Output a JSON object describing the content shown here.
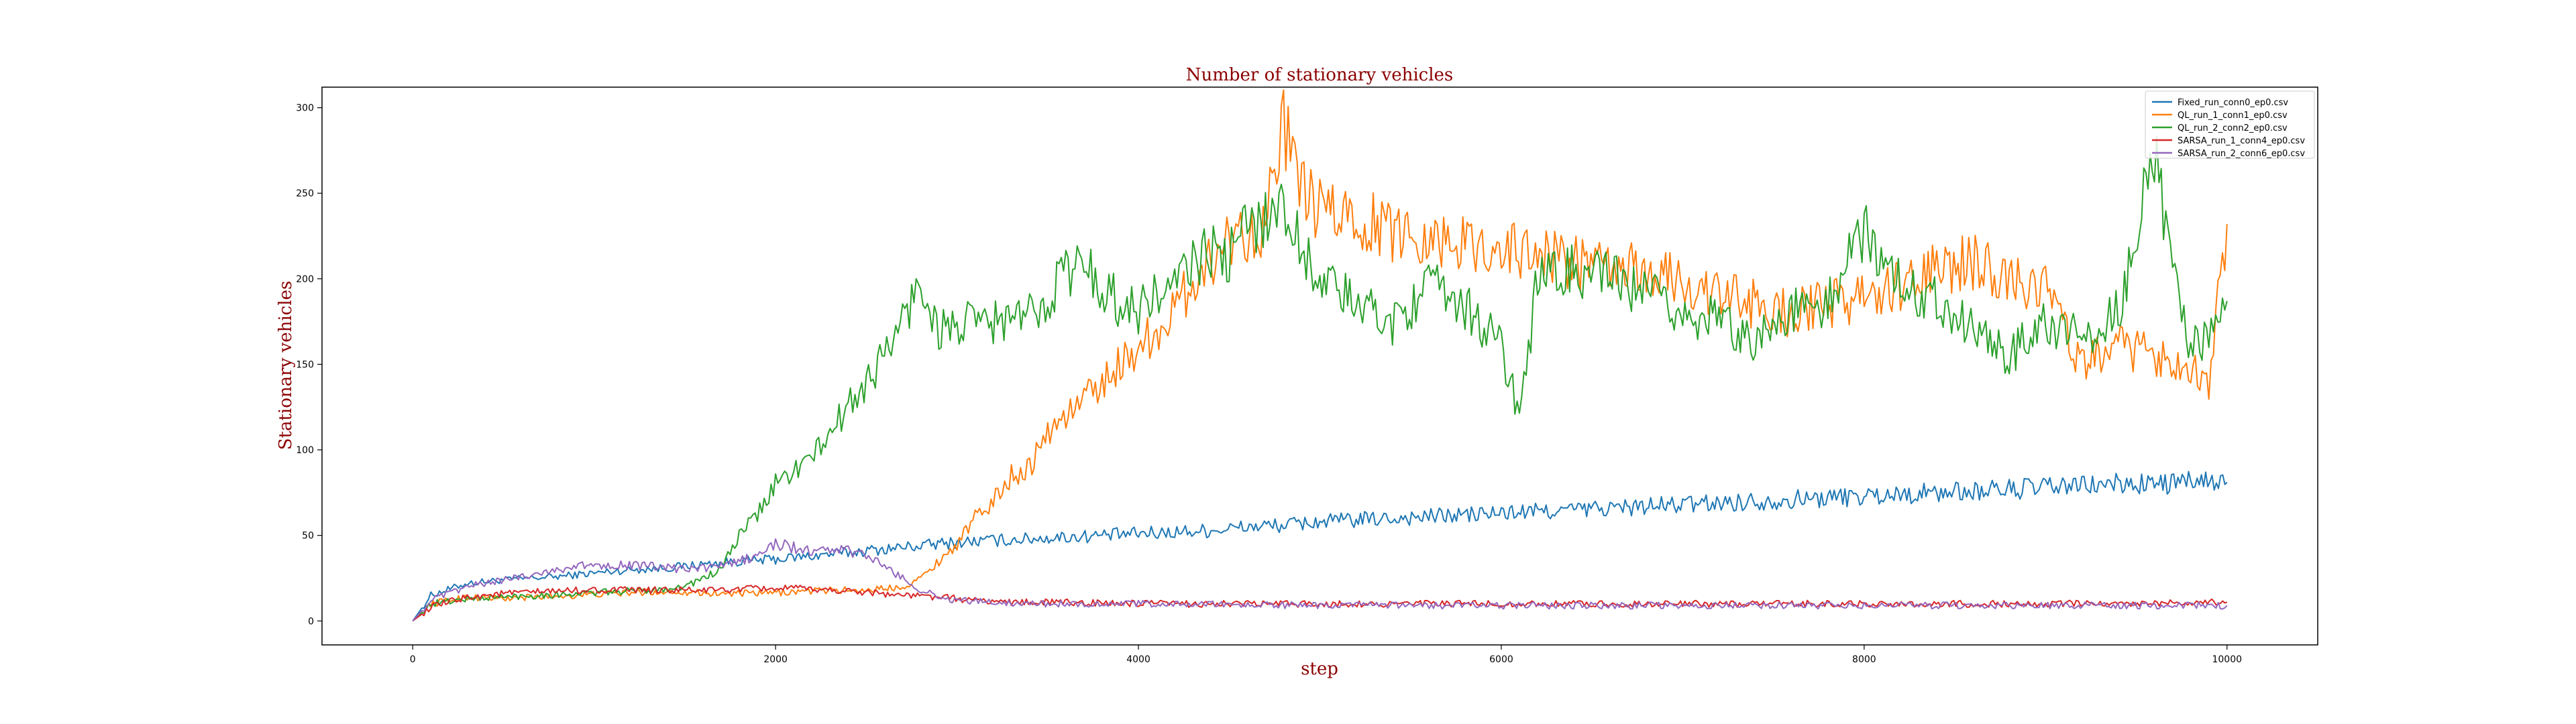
{
  "chart_data": {
    "type": "line",
    "title": "Number of stationary vehicles",
    "xlabel": "step",
    "ylabel": "Stationary vehicles",
    "xlim": [
      -500,
      10500
    ],
    "ylim": [
      -14,
      312
    ],
    "xticks": [
      0,
      2000,
      4000,
      6000,
      8000,
      10000
    ],
    "yticks": [
      0,
      50,
      100,
      150,
      200,
      250,
      300
    ],
    "grid": false,
    "legend_position": "top-right",
    "title_color": "#8b0000",
    "series": [
      {
        "name": "Fixed_run_conn0_ep0.csv",
        "color": "#1f77b4",
        "points": [
          [
            0,
            0
          ],
          [
            100,
            15
          ],
          [
            300,
            22
          ],
          [
            500,
            24
          ],
          [
            800,
            26
          ],
          [
            1000,
            28
          ],
          [
            1200,
            30
          ],
          [
            1400,
            31
          ],
          [
            1600,
            33
          ],
          [
            1800,
            35
          ],
          [
            2000,
            36
          ],
          [
            2200,
            38
          ],
          [
            2400,
            40
          ],
          [
            2600,
            42
          ],
          [
            2800,
            44
          ],
          [
            3000,
            46
          ],
          [
            3200,
            47
          ],
          [
            3400,
            48
          ],
          [
            3600,
            49
          ],
          [
            3800,
            50
          ],
          [
            4000,
            51
          ],
          [
            4200,
            52
          ],
          [
            4400,
            53
          ],
          [
            4600,
            55
          ],
          [
            4800,
            56
          ],
          [
            5000,
            58
          ],
          [
            5200,
            59
          ],
          [
            5400,
            60
          ],
          [
            5600,
            61
          ],
          [
            5800,
            62
          ],
          [
            6000,
            63
          ],
          [
            6200,
            64
          ],
          [
            6400,
            65
          ],
          [
            6600,
            66
          ],
          [
            6800,
            67
          ],
          [
            7000,
            68
          ],
          [
            7200,
            69
          ],
          [
            7400,
            70
          ],
          [
            7600,
            71
          ],
          [
            7800,
            72
          ],
          [
            8000,
            73
          ],
          [
            8200,
            74
          ],
          [
            8400,
            75
          ],
          [
            8600,
            76
          ],
          [
            8800,
            77
          ],
          [
            9000,
            78
          ],
          [
            9200,
            79
          ],
          [
            9400,
            80
          ],
          [
            9600,
            80
          ],
          [
            9800,
            81
          ],
          [
            10000,
            81
          ]
        ]
      },
      {
        "name": "QL_run_1_conn1_ep0.csv",
        "color": "#ff7f0e",
        "points": [
          [
            0,
            0
          ],
          [
            100,
            10
          ],
          [
            300,
            14
          ],
          [
            500,
            13
          ],
          [
            700,
            14
          ],
          [
            900,
            15
          ],
          [
            1100,
            16
          ],
          [
            1300,
            17
          ],
          [
            1500,
            17
          ],
          [
            1700,
            16
          ],
          [
            1900,
            16
          ],
          [
            2100,
            17
          ],
          [
            2300,
            18
          ],
          [
            2500,
            18
          ],
          [
            2700,
            20
          ],
          [
            2800,
            25
          ],
          [
            2900,
            35
          ],
          [
            3000,
            45
          ],
          [
            3100,
            60
          ],
          [
            3200,
            70
          ],
          [
            3300,
            85
          ],
          [
            3400,
            90
          ],
          [
            3500,
            110
          ],
          [
            3600,
            120
          ],
          [
            3700,
            130
          ],
          [
            3800,
            140
          ],
          [
            3900,
            150
          ],
          [
            4000,
            160
          ],
          [
            4100,
            170
          ],
          [
            4200,
            180
          ],
          [
            4300,
            200
          ],
          [
            4400,
            210
          ],
          [
            4500,
            225
          ],
          [
            4600,
            228
          ],
          [
            4700,
            232
          ],
          [
            4800,
            290
          ],
          [
            4900,
            250
          ],
          [
            5000,
            240
          ],
          [
            5200,
            235
          ],
          [
            5400,
            228
          ],
          [
            5600,
            225
          ],
          [
            5800,
            220
          ],
          [
            6000,
            218
          ],
          [
            6200,
            215
          ],
          [
            6400,
            210
          ],
          [
            6600,
            205
          ],
          [
            6800,
            205
          ],
          [
            7000,
            198
          ],
          [
            7200,
            190
          ],
          [
            7400,
            185
          ],
          [
            7600,
            180
          ],
          [
            7800,
            185
          ],
          [
            8000,
            190
          ],
          [
            8200,
            195
          ],
          [
            8400,
            205
          ],
          [
            8600,
            210
          ],
          [
            8800,
            200
          ],
          [
            9000,
            195
          ],
          [
            9200,
            150
          ],
          [
            9400,
            160
          ],
          [
            9600,
            155
          ],
          [
            9800,
            150
          ],
          [
            9900,
            140
          ],
          [
            10000,
            232
          ]
        ]
      },
      {
        "name": "QL_run_2_conn2_ep0.csv",
        "color": "#2ca02c",
        "points": [
          [
            0,
            0
          ],
          [
            100,
            10
          ],
          [
            300,
            13
          ],
          [
            500,
            14
          ],
          [
            700,
            15
          ],
          [
            900,
            16
          ],
          [
            1100,
            17
          ],
          [
            1300,
            18
          ],
          [
            1500,
            20
          ],
          [
            1700,
            30
          ],
          [
            1800,
            50
          ],
          [
            1900,
            62
          ],
          [
            2000,
            80
          ],
          [
            2100,
            88
          ],
          [
            2200,
            95
          ],
          [
            2300,
            110
          ],
          [
            2400,
            125
          ],
          [
            2500,
            140
          ],
          [
            2600,
            155
          ],
          [
            2700,
            175
          ],
          [
            2800,
            198
          ],
          [
            2900,
            170
          ],
          [
            3000,
            172
          ],
          [
            3200,
            175
          ],
          [
            3400,
            178
          ],
          [
            3500,
            190
          ],
          [
            3600,
            205
          ],
          [
            3700,
            208
          ],
          [
            3800,
            195
          ],
          [
            3900,
            185
          ],
          [
            4000,
            182
          ],
          [
            4100,
            190
          ],
          [
            4200,
            195
          ],
          [
            4300,
            210
          ],
          [
            4400,
            215
          ],
          [
            4500,
            212
          ],
          [
            4600,
            230
          ],
          [
            4700,
            238
          ],
          [
            4800,
            240
          ],
          [
            4900,
            220
          ],
          [
            5000,
            200
          ],
          [
            5200,
            185
          ],
          [
            5400,
            175
          ],
          [
            5600,
            195
          ],
          [
            5800,
            185
          ],
          [
            6000,
            160
          ],
          [
            6100,
            120
          ],
          [
            6200,
            200
          ],
          [
            6400,
            205
          ],
          [
            6600,
            200
          ],
          [
            6800,
            190
          ],
          [
            7000,
            180
          ],
          [
            7200,
            175
          ],
          [
            7400,
            165
          ],
          [
            7600,
            180
          ],
          [
            7800,
            185
          ],
          [
            8000,
            230
          ],
          [
            8200,
            195
          ],
          [
            8400,
            190
          ],
          [
            8600,
            170
          ],
          [
            8800,
            155
          ],
          [
            9000,
            175
          ],
          [
            9200,
            165
          ],
          [
            9400,
            180
          ],
          [
            9600,
            275
          ],
          [
            9700,
            200
          ],
          [
            9800,
            160
          ],
          [
            9900,
            165
          ],
          [
            10000,
            187
          ]
        ]
      },
      {
        "name": "SARSA_run_1_conn4_ep0.csv",
        "color": "#d62728",
        "points": [
          [
            0,
            0
          ],
          [
            100,
            8
          ],
          [
            300,
            14
          ],
          [
            500,
            16
          ],
          [
            700,
            17
          ],
          [
            900,
            18
          ],
          [
            1100,
            18
          ],
          [
            1300,
            18
          ],
          [
            1500,
            18
          ],
          [
            1700,
            18
          ],
          [
            1900,
            19
          ],
          [
            2100,
            19
          ],
          [
            2300,
            18
          ],
          [
            2500,
            17
          ],
          [
            2700,
            15
          ],
          [
            2900,
            14
          ],
          [
            3100,
            12
          ],
          [
            3300,
            11
          ],
          [
            3500,
            11
          ],
          [
            4000,
            10
          ],
          [
            5000,
            10
          ],
          [
            6000,
            10
          ],
          [
            7000,
            10
          ],
          [
            8000,
            10
          ],
          [
            9000,
            10
          ],
          [
            10000,
            11
          ]
        ]
      },
      {
        "name": "SARSA_run_2_conn6_ep0.csv",
        "color": "#9467bd",
        "points": [
          [
            0,
            0
          ],
          [
            100,
            12
          ],
          [
            300,
            20
          ],
          [
            500,
            24
          ],
          [
            700,
            28
          ],
          [
            900,
            32
          ],
          [
            1100,
            33
          ],
          [
            1300,
            32
          ],
          [
            1500,
            30
          ],
          [
            1700,
            32
          ],
          [
            1900,
            38
          ],
          [
            2000,
            45
          ],
          [
            2100,
            43
          ],
          [
            2200,
            40
          ],
          [
            2300,
            42
          ],
          [
            2400,
            41
          ],
          [
            2500,
            38
          ],
          [
            2600,
            32
          ],
          [
            2700,
            25
          ],
          [
            2800,
            18
          ],
          [
            2900,
            14
          ],
          [
            3000,
            12
          ],
          [
            3200,
            11
          ],
          [
            3500,
            10
          ],
          [
            4000,
            10
          ],
          [
            5000,
            9
          ],
          [
            6000,
            9
          ],
          [
            7000,
            9
          ],
          [
            8000,
            9
          ],
          [
            9000,
            9
          ],
          [
            10000,
            9
          ]
        ]
      }
    ]
  }
}
